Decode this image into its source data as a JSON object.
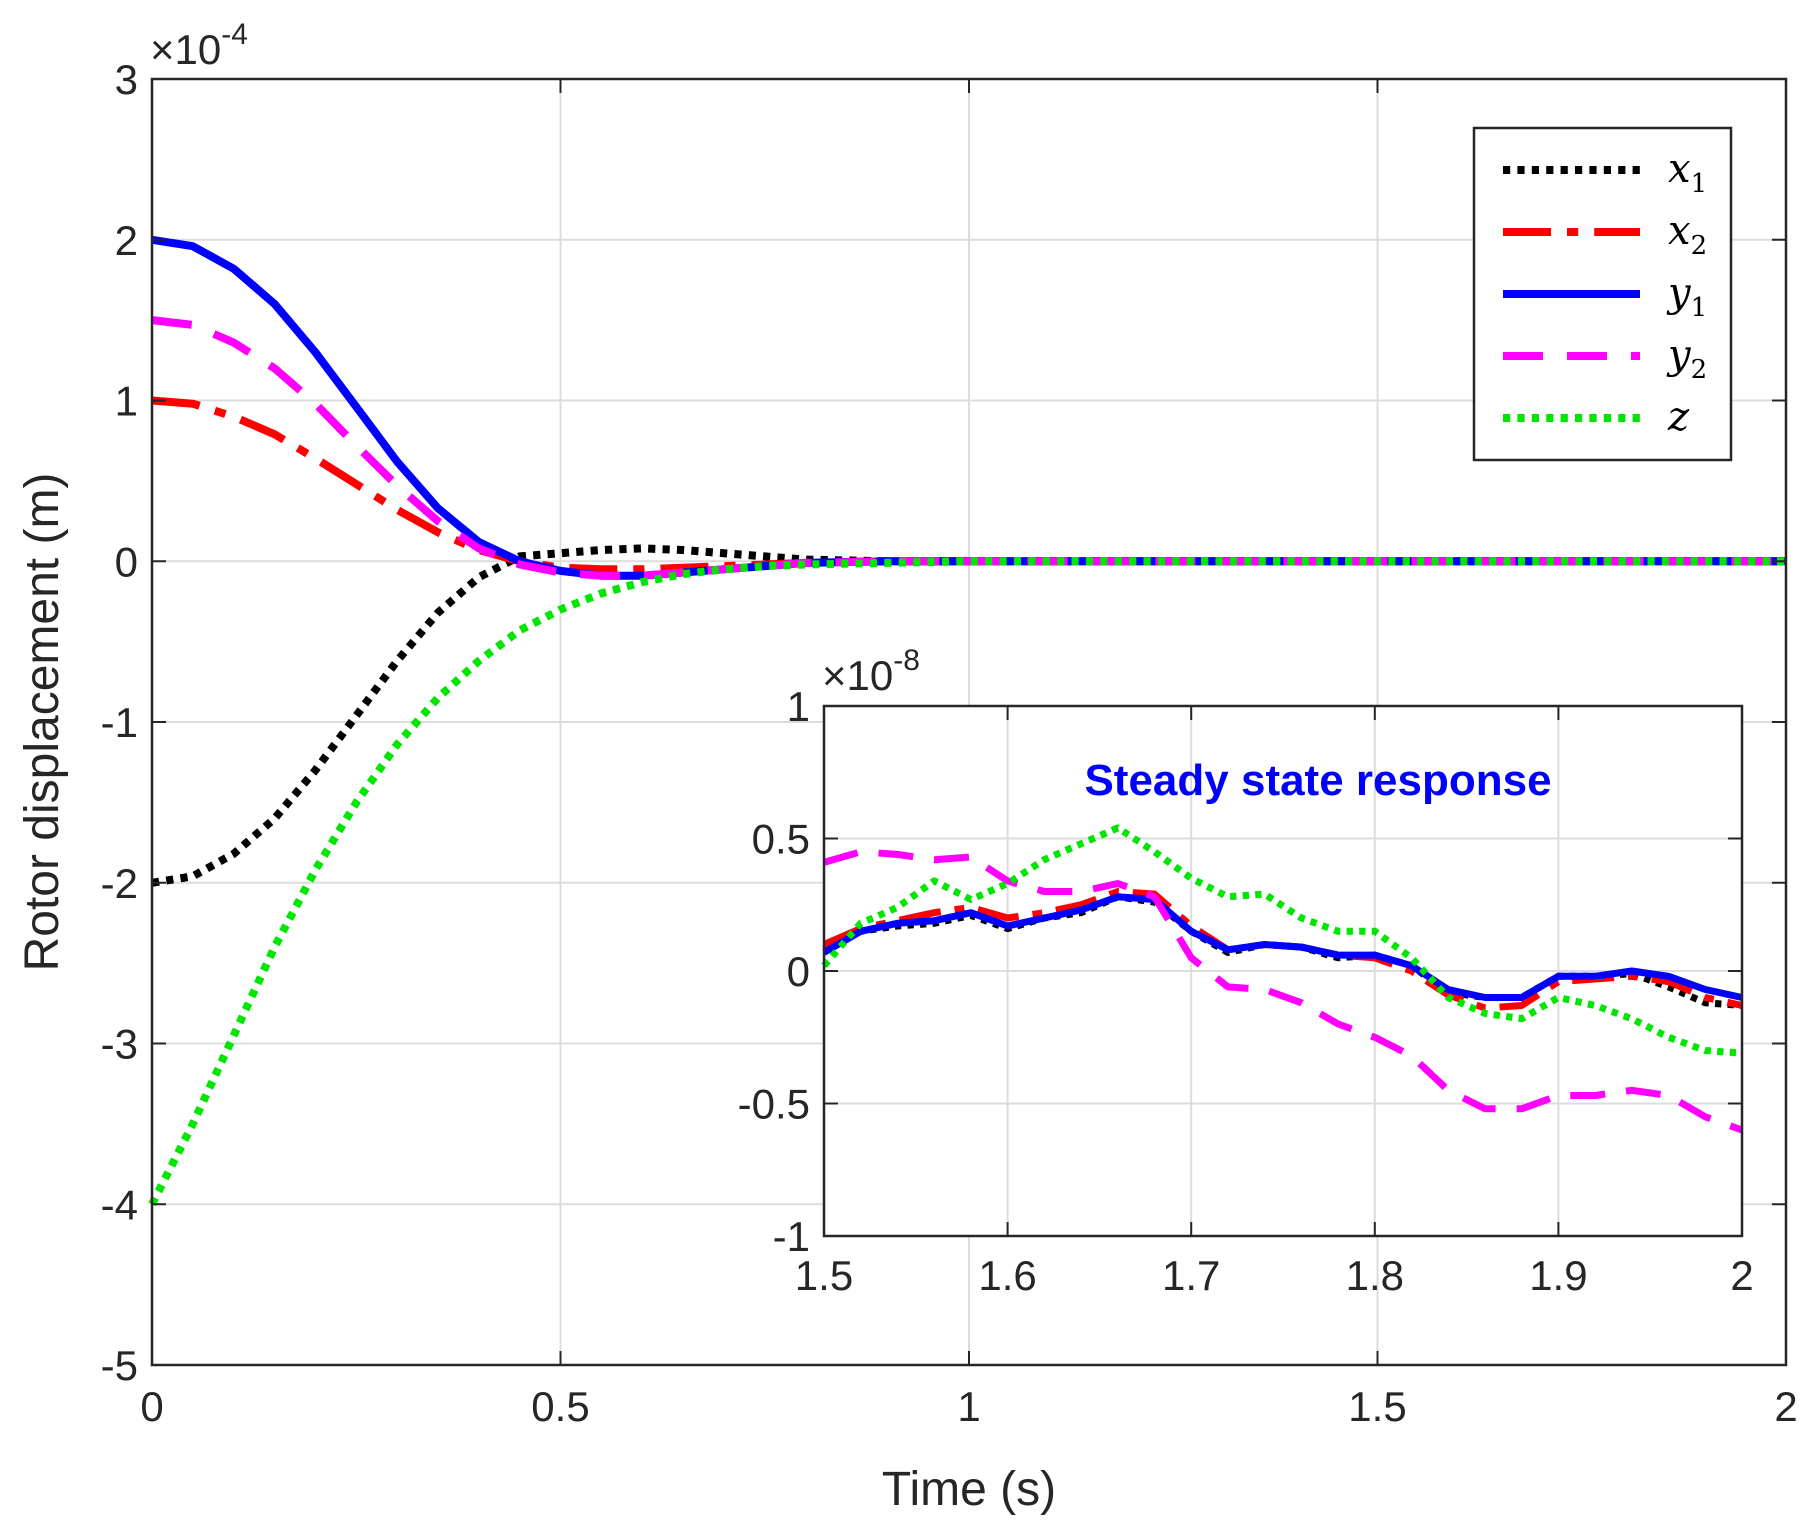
{
  "chart_data": [
    {
      "type": "line",
      "id": "main",
      "xlabel": "Time (s)",
      "ylabel": "Rotor displacement (m)",
      "xlim": [
        0,
        2
      ],
      "ylim": [
        -5,
        3
      ],
      "y_exponent_label": "×10",
      "y_exponent_power": "-4",
      "xticks": [
        "0",
        "0.5",
        "1",
        "1.5",
        "2"
      ],
      "yticks": [
        "-5",
        "-4",
        "-3",
        "-2",
        "-1",
        "0",
        "1",
        "2",
        "3"
      ],
      "grid": true,
      "legend_position": "top-right",
      "series": [
        {
          "name": "x1",
          "label_main": "x",
          "label_sub": "1",
          "color": "#000000",
          "style": "dotted",
          "x": [
            0,
            0.05,
            0.1,
            0.15,
            0.2,
            0.25,
            0.3,
            0.35,
            0.4,
            0.45,
            0.5,
            0.55,
            0.6,
            0.65,
            0.7,
            0.75,
            0.8,
            0.9,
            1.0,
            1.5,
            2.0
          ],
          "y": [
            -2.0,
            -1.96,
            -1.82,
            -1.6,
            -1.3,
            -0.96,
            -0.62,
            -0.32,
            -0.1,
            0.03,
            0.05,
            0.07,
            0.08,
            0.07,
            0.05,
            0.03,
            0.01,
            0.0,
            0.0,
            0.0,
            0.0
          ]
        },
        {
          "name": "x2",
          "label_main": "x",
          "label_sub": "2",
          "color": "#ff0000",
          "style": "dashdot",
          "x": [
            0,
            0.05,
            0.1,
            0.15,
            0.2,
            0.25,
            0.3,
            0.35,
            0.4,
            0.45,
            0.5,
            0.55,
            0.6,
            0.65,
            0.7,
            0.75,
            0.8,
            0.9,
            1.0,
            1.5,
            2.0
          ],
          "y": [
            1.0,
            0.98,
            0.9,
            0.79,
            0.64,
            0.48,
            0.32,
            0.18,
            0.07,
            0.0,
            -0.04,
            -0.05,
            -0.05,
            -0.04,
            -0.03,
            -0.02,
            -0.01,
            0.0,
            0.0,
            0.0,
            0.0
          ]
        },
        {
          "name": "y1",
          "label_main": "y",
          "label_sub": "1",
          "color": "#0000ff",
          "style": "solid",
          "x": [
            0,
            0.05,
            0.1,
            0.15,
            0.2,
            0.25,
            0.3,
            0.35,
            0.4,
            0.45,
            0.5,
            0.55,
            0.6,
            0.65,
            0.7,
            0.75,
            0.8,
            0.9,
            1.0,
            1.5,
            2.0
          ],
          "y": [
            2.0,
            1.96,
            1.82,
            1.6,
            1.3,
            0.96,
            0.62,
            0.33,
            0.12,
            0.0,
            -0.06,
            -0.09,
            -0.09,
            -0.07,
            -0.05,
            -0.03,
            -0.01,
            0.0,
            0.0,
            0.0,
            0.0
          ]
        },
        {
          "name": "y2",
          "label_main": "y",
          "label_sub": "2",
          "color": "#ff00ff",
          "style": "dashed",
          "x": [
            0,
            0.05,
            0.1,
            0.15,
            0.2,
            0.25,
            0.3,
            0.35,
            0.4,
            0.45,
            0.5,
            0.55,
            0.6,
            0.65,
            0.7,
            0.75,
            0.8,
            0.9,
            1.0,
            1.5,
            2.0
          ],
          "y": [
            1.5,
            1.47,
            1.36,
            1.2,
            0.98,
            0.72,
            0.47,
            0.25,
            0.08,
            -0.02,
            -0.07,
            -0.09,
            -0.09,
            -0.07,
            -0.05,
            -0.03,
            -0.01,
            0.0,
            0.0,
            0.0,
            0.0
          ]
        },
        {
          "name": "z",
          "label_main": "z",
          "label_sub": "",
          "color": "#00e600",
          "style": "dotted",
          "x": [
            0,
            0.05,
            0.1,
            0.15,
            0.2,
            0.25,
            0.3,
            0.35,
            0.4,
            0.45,
            0.5,
            0.55,
            0.6,
            0.65,
            0.7,
            0.75,
            0.8,
            0.9,
            1.0,
            1.5,
            2.0
          ],
          "y": [
            -4.0,
            -3.5,
            -2.95,
            -2.4,
            -1.92,
            -1.5,
            -1.14,
            -0.85,
            -0.62,
            -0.43,
            -0.3,
            -0.2,
            -0.13,
            -0.08,
            -0.05,
            -0.03,
            -0.02,
            -0.01,
            0.0,
            0.0,
            0.0
          ]
        }
      ]
    },
    {
      "type": "line",
      "id": "inset",
      "title": "Steady state response",
      "xlim": [
        1.5,
        2
      ],
      "ylim": [
        -1,
        1
      ],
      "y_exponent_label": "×10",
      "y_exponent_power": "-8",
      "xticks": [
        "1.5",
        "1.6",
        "1.7",
        "1.8",
        "1.9",
        "2"
      ],
      "yticks": [
        "-1",
        "-0.5",
        "0",
        "0.5",
        "1"
      ],
      "grid": true,
      "series": [
        {
          "name": "x1",
          "color": "#000000",
          "style": "dotted",
          "x": [
            1.5,
            1.52,
            1.54,
            1.56,
            1.58,
            1.6,
            1.62,
            1.64,
            1.66,
            1.68,
            1.7,
            1.72,
            1.74,
            1.76,
            1.78,
            1.8,
            1.82,
            1.84,
            1.86,
            1.88,
            1.9,
            1.92,
            1.94,
            1.96,
            1.98,
            2.0
          ],
          "y": [
            0.08,
            0.15,
            0.17,
            0.18,
            0.21,
            0.16,
            0.2,
            0.22,
            0.28,
            0.26,
            0.15,
            0.07,
            0.1,
            0.09,
            0.05,
            0.06,
            0.02,
            -0.08,
            -0.1,
            -0.1,
            -0.02,
            -0.02,
            -0.01,
            -0.06,
            -0.12,
            -0.13
          ]
        },
        {
          "name": "x2",
          "color": "#ff0000",
          "style": "dashdot",
          "x": [
            1.5,
            1.52,
            1.54,
            1.56,
            1.58,
            1.6,
            1.62,
            1.64,
            1.66,
            1.68,
            1.7,
            1.72,
            1.74,
            1.76,
            1.78,
            1.8,
            1.82,
            1.84,
            1.86,
            1.88,
            1.9,
            1.92,
            1.94,
            1.96,
            1.98,
            2.0
          ],
          "y": [
            0.1,
            0.16,
            0.19,
            0.22,
            0.24,
            0.2,
            0.22,
            0.25,
            0.3,
            0.29,
            0.17,
            0.08,
            0.1,
            0.09,
            0.06,
            0.05,
            0.0,
            -0.09,
            -0.14,
            -0.13,
            -0.04,
            -0.03,
            -0.02,
            -0.04,
            -0.1,
            -0.13
          ]
        },
        {
          "name": "y1",
          "color": "#0000ff",
          "style": "solid",
          "x": [
            1.5,
            1.52,
            1.54,
            1.56,
            1.58,
            1.6,
            1.62,
            1.64,
            1.66,
            1.68,
            1.7,
            1.72,
            1.74,
            1.76,
            1.78,
            1.8,
            1.82,
            1.84,
            1.86,
            1.88,
            1.9,
            1.92,
            1.94,
            1.96,
            1.98,
            2.0
          ],
          "y": [
            0.07,
            0.15,
            0.18,
            0.19,
            0.22,
            0.17,
            0.2,
            0.23,
            0.28,
            0.27,
            0.15,
            0.08,
            0.1,
            0.09,
            0.06,
            0.06,
            0.02,
            -0.07,
            -0.1,
            -0.1,
            -0.02,
            -0.02,
            0.0,
            -0.02,
            -0.07,
            -0.1
          ]
        },
        {
          "name": "y2",
          "color": "#ff00ff",
          "style": "dashed",
          "x": [
            1.5,
            1.52,
            1.54,
            1.56,
            1.58,
            1.6,
            1.62,
            1.64,
            1.66,
            1.68,
            1.7,
            1.72,
            1.74,
            1.76,
            1.78,
            1.8,
            1.82,
            1.84,
            1.86,
            1.88,
            1.9,
            1.92,
            1.94,
            1.96,
            1.98,
            2.0
          ],
          "y": [
            0.41,
            0.45,
            0.44,
            0.42,
            0.43,
            0.34,
            0.3,
            0.3,
            0.33,
            0.28,
            0.05,
            -0.06,
            -0.07,
            -0.12,
            -0.2,
            -0.25,
            -0.32,
            -0.45,
            -0.52,
            -0.52,
            -0.47,
            -0.47,
            -0.45,
            -0.47,
            -0.55,
            -0.6
          ]
        },
        {
          "name": "z",
          "color": "#00e600",
          "style": "dotted",
          "x": [
            1.5,
            1.52,
            1.54,
            1.56,
            1.58,
            1.6,
            1.62,
            1.64,
            1.66,
            1.68,
            1.7,
            1.72,
            1.74,
            1.76,
            1.78,
            1.8,
            1.82,
            1.84,
            1.86,
            1.88,
            1.9,
            1.92,
            1.94,
            1.96,
            1.98,
            2.0
          ],
          "y": [
            0.02,
            0.18,
            0.24,
            0.34,
            0.27,
            0.33,
            0.42,
            0.48,
            0.54,
            0.45,
            0.35,
            0.28,
            0.29,
            0.2,
            0.15,
            0.15,
            0.05,
            -0.1,
            -0.16,
            -0.18,
            -0.1,
            -0.13,
            -0.18,
            -0.25,
            -0.3,
            -0.31
          ]
        }
      ]
    }
  ]
}
